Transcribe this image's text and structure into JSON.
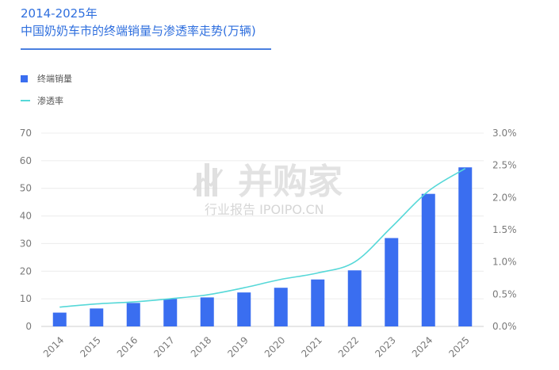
{
  "title": {
    "line1": "2014-2025年",
    "line2": "中国奶奶车市的终端销量与渗透率走势(万辆)"
  },
  "legend": {
    "bar_label": "终端销量",
    "line_label": "渗透率"
  },
  "colors": {
    "bar": "#3a6ef0",
    "line": "#56d8d8",
    "title": "#2f6fde"
  },
  "watermark": {
    "main": "并购家",
    "sub": "行业报告 IPOIPO.CN"
  },
  "chart_data": {
    "type": "bar",
    "categories": [
      "2014",
      "2015",
      "2016",
      "2017",
      "2018",
      "2019",
      "2020",
      "2021",
      "2022",
      "2023",
      "2024",
      "2025"
    ],
    "series": [
      {
        "name": "终端销量",
        "type": "bar",
        "axis": "left",
        "values": [
          5,
          6.5,
          8.5,
          10,
          10.5,
          12.3,
          14,
          17,
          20.3,
          32,
          48,
          57.6
        ]
      },
      {
        "name": "渗透率",
        "type": "line",
        "axis": "right",
        "values": [
          0.3,
          0.35,
          0.38,
          0.43,
          0.49,
          0.6,
          0.73,
          0.83,
          1.0,
          1.54,
          2.1,
          2.45
        ]
      }
    ],
    "ylim_left": [
      0,
      70
    ],
    "yticks_left": [
      "0",
      "10",
      "20",
      "30",
      "40",
      "50",
      "60",
      "70"
    ],
    "ylim_right": [
      0,
      3.0
    ],
    "yticks_right": [
      "0.0%",
      "0.5%",
      "1.0%",
      "1.5%",
      "2.0%",
      "2.5%",
      "3.0%"
    ],
    "grid": "horizontal",
    "legend_position": "top-left"
  }
}
